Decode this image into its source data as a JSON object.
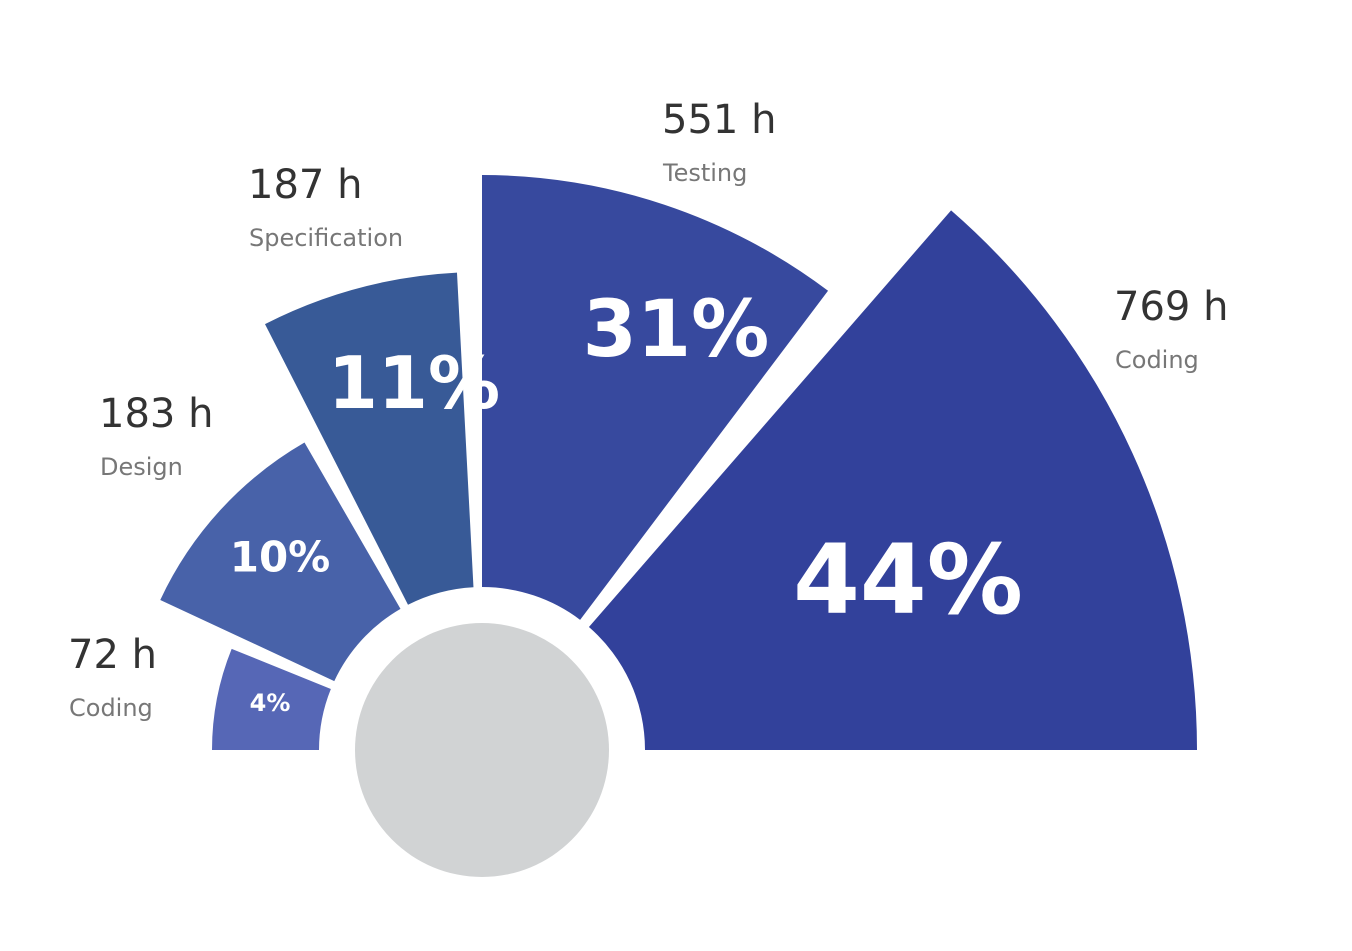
{
  "chart_data": {
    "type": "polar-area-semicircle",
    "unit": "h",
    "segments": [
      {
        "category": "Coding",
        "hours": "72 h",
        "percent": "4%",
        "value": 72,
        "color": "#5667b6"
      },
      {
        "category": "Design",
        "hours": "183 h",
        "percent": "10%",
        "value": 183,
        "color": "#4862a9"
      },
      {
        "category": "Specification",
        "hours": "187 h",
        "percent": "11%",
        "value": 187,
        "color": "#385a97"
      },
      {
        "category": "Testing",
        "hours": "551 h",
        "percent": "31%",
        "value": 551,
        "color": "#37499e"
      },
      {
        "category": "Coding",
        "hours": "769 h",
        "percent": "44%",
        "value": 769,
        "color": "#32419b"
      }
    ],
    "center_color": "#d1d3d4"
  }
}
